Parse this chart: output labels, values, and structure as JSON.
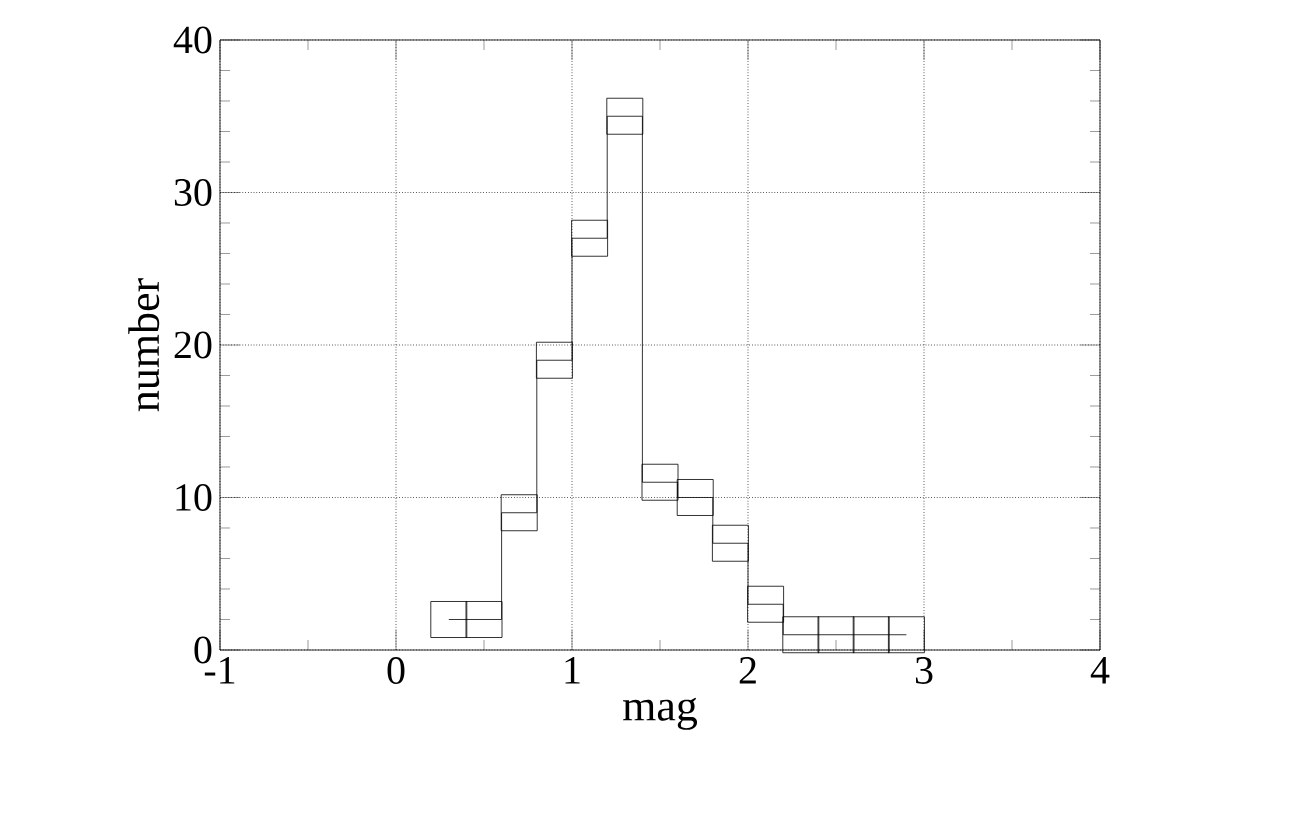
{
  "chart_data": {
    "type": "step",
    "xlabel": "mag",
    "ylabel": "number",
    "series": [
      {
        "color": "#000000",
        "x": [
          0.3,
          0.5,
          0.7,
          0.9,
          1.1,
          1.3,
          1.5,
          1.7,
          1.9,
          2.1,
          2.3,
          2.5,
          2.7,
          2.9
        ],
        "values": [
          2,
          2,
          9,
          19,
          27,
          35,
          11,
          10,
          7,
          3,
          1,
          1,
          1,
          1
        ]
      }
    ],
    "xlim": [
      -1,
      4
    ],
    "ylim": [
      0,
      40
    ],
    "xticks": [
      -1,
      0,
      1,
      2,
      3,
      4
    ],
    "yticks": [
      0,
      10,
      20,
      30,
      40
    ],
    "grid": true,
    "marker": "square",
    "line_style": "solid"
  }
}
